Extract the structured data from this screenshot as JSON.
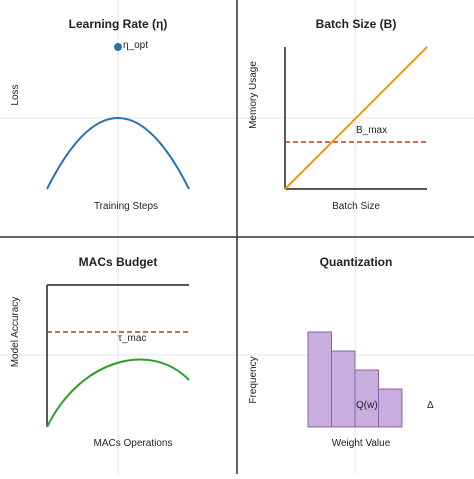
{
  "panels": {
    "learning_rate": {
      "title": "Learning Rate (η)",
      "xlabel": "Training Steps",
      "ylabel": "Loss",
      "point_label": "η_opt"
    },
    "batch_size": {
      "title": "Batch Size (B)",
      "xlabel": "Batch Size",
      "ylabel": "Memory Usage",
      "threshold_label": "B_max"
    },
    "macs_budget": {
      "title": "MACs Budget",
      "xlabel": "MACs Operations",
      "ylabel": "Model Accuracy",
      "threshold_label": "τ_mac"
    },
    "quantization": {
      "title": "Quantization",
      "xlabel": "Weight Value",
      "ylabel": "Frequency",
      "bar_label": "Q(w)",
      "step_label": "Δ",
      "bar_levels": [
        1.0,
        0.8,
        0.6,
        0.4
      ]
    }
  },
  "colors": {
    "blue_curve": "#2a72b0",
    "orange_line": "#ef941f",
    "green_curve": "#2ca02c",
    "dashed_red": "#c0392b",
    "bar_fill": "#c7aedc",
    "bar_stroke": "#8a63aa",
    "divider": "#333333",
    "grid": "#e6e6e6",
    "axis": "#222222"
  }
}
